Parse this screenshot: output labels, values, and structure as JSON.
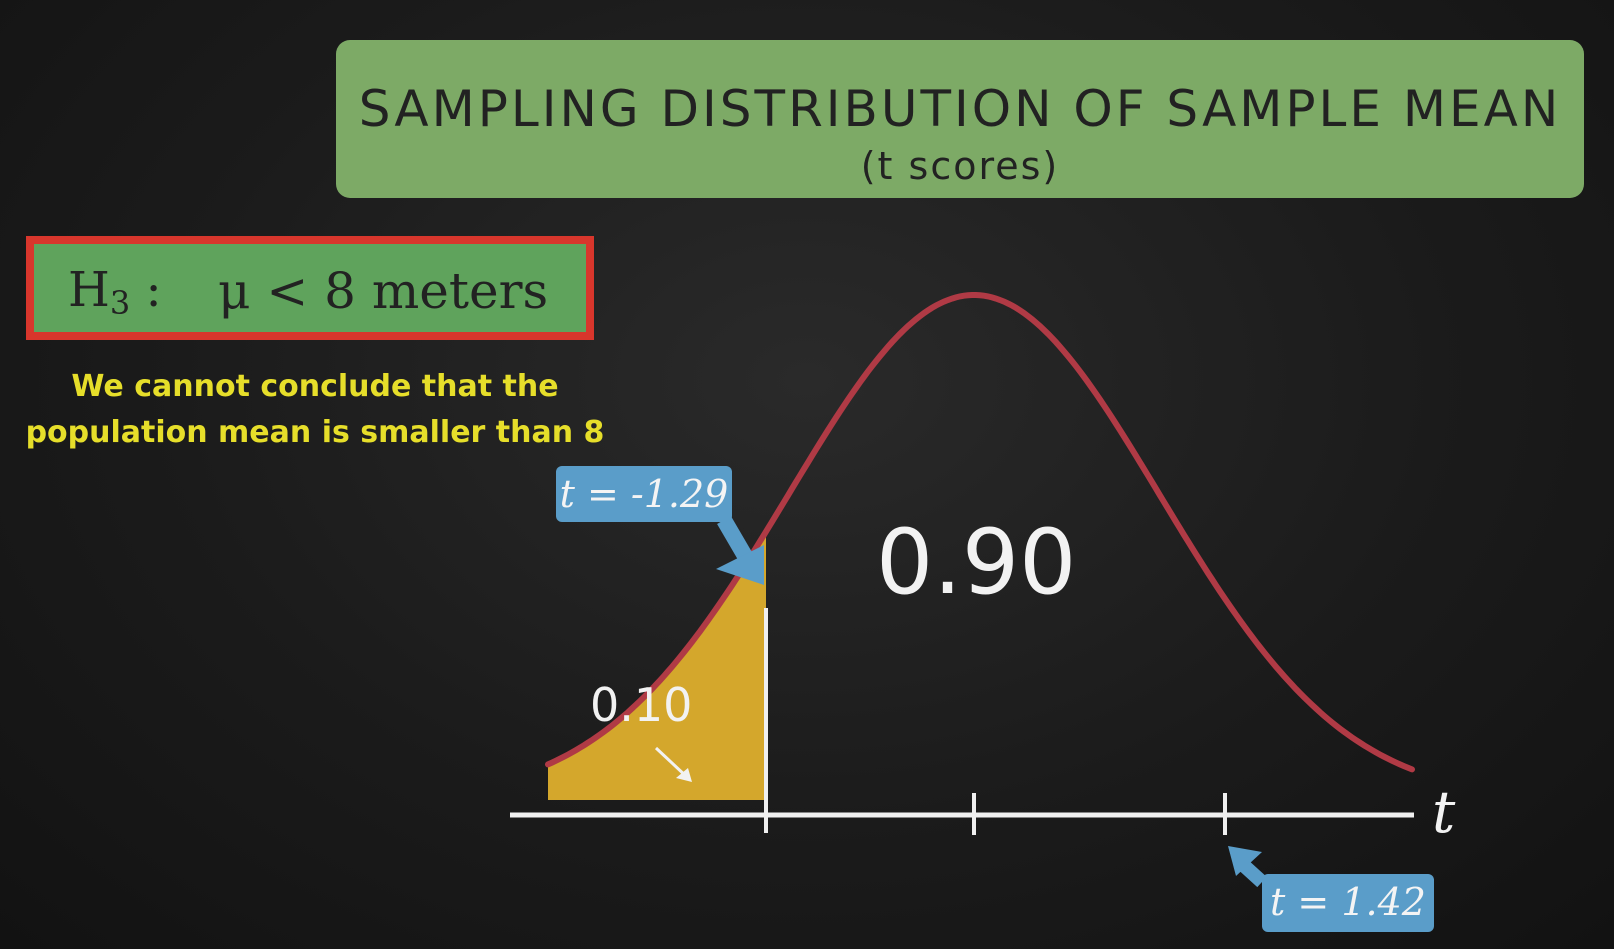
{
  "title": {
    "main": "SAMPLING DISTRIBUTION OF SAMPLE MEAN",
    "sub": "(t scores)"
  },
  "hypothesis": {
    "label": "H",
    "subscript": "3",
    "separator": ":",
    "statement": "μ < 8 meters"
  },
  "conclusion": "We cannot conclude that the population mean is smaller than 8",
  "distribution": {
    "axis_label": "t",
    "center_area": "0.90",
    "tail_area": "0.10",
    "critical_label": "t = -1.29",
    "observed_label": "t = 1.42",
    "colors": {
      "curve": "#b03a45",
      "tail_fill": "#d4a72c",
      "axis": "#f0f0f0",
      "callout": "#5a9dc9"
    }
  }
}
